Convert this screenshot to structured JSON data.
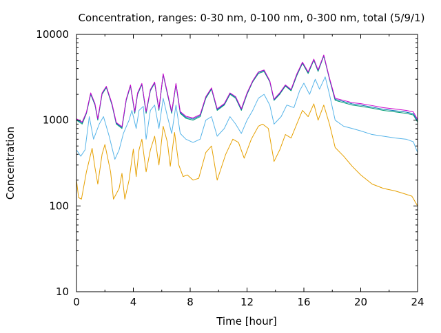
{
  "chart_data": {
    "type": "line",
    "title": "Concentration, ranges: 0-30 nm, 0-100 nm, 0-300 nm, total (5/9/1)",
    "xlabel": "Time [hour]",
    "ylabel": "Concentration",
    "xlim": [
      0,
      24
    ],
    "ylim": [
      10,
      10000
    ],
    "y_scale": "log",
    "grid": false,
    "x_ticks": [
      0,
      4,
      8,
      12,
      16,
      20,
      24
    ],
    "x_tick_labels": [
      "0",
      "4",
      "8",
      "12",
      "16",
      "20",
      "24"
    ],
    "y_ticks": [
      10,
      100,
      1000,
      10000
    ],
    "y_tick_labels": [
      "10",
      "100",
      "1000",
      "10000"
    ],
    "series": [
      {
        "color": "#E6A000",
        "points": [
          [
            0,
            200
          ],
          [
            0.15,
            125
          ],
          [
            0.35,
            120
          ],
          [
            0.7,
            250
          ],
          [
            1.1,
            470
          ],
          [
            1.3,
            280
          ],
          [
            1.5,
            180
          ],
          [
            1.8,
            400
          ],
          [
            2.0,
            520
          ],
          [
            2.4,
            250
          ],
          [
            2.6,
            120
          ],
          [
            3.0,
            160
          ],
          [
            3.2,
            240
          ],
          [
            3.4,
            120
          ],
          [
            3.7,
            200
          ],
          [
            4.0,
            460
          ],
          [
            4.2,
            220
          ],
          [
            4.4,
            450
          ],
          [
            4.6,
            600
          ],
          [
            4.9,
            250
          ],
          [
            5.2,
            450
          ],
          [
            5.5,
            650
          ],
          [
            5.8,
            300
          ],
          [
            6.1,
            850
          ],
          [
            6.4,
            550
          ],
          [
            6.6,
            290
          ],
          [
            6.9,
            720
          ],
          [
            7.2,
            300
          ],
          [
            7.5,
            220
          ],
          [
            7.8,
            230
          ],
          [
            8.2,
            200
          ],
          [
            8.6,
            210
          ],
          [
            9.1,
            420
          ],
          [
            9.5,
            500
          ],
          [
            9.9,
            200
          ],
          [
            10.5,
            400
          ],
          [
            11.0,
            600
          ],
          [
            11.4,
            550
          ],
          [
            11.8,
            360
          ],
          [
            12.3,
            600
          ],
          [
            12.8,
            850
          ],
          [
            13.1,
            900
          ],
          [
            13.5,
            800
          ],
          [
            13.9,
            330
          ],
          [
            14.3,
            450
          ],
          [
            14.7,
            680
          ],
          [
            15.1,
            620
          ],
          [
            15.5,
            900
          ],
          [
            15.9,
            1300
          ],
          [
            16.3,
            1100
          ],
          [
            16.7,
            1550
          ],
          [
            17.0,
            1000
          ],
          [
            17.4,
            1500
          ],
          [
            17.8,
            900
          ],
          [
            18.2,
            480
          ],
          [
            18.8,
            380
          ],
          [
            19.4,
            290
          ],
          [
            20.0,
            230
          ],
          [
            20.8,
            180
          ],
          [
            21.6,
            160
          ],
          [
            22.4,
            150
          ],
          [
            23.0,
            140
          ],
          [
            23.6,
            130
          ],
          [
            24,
            100
          ]
        ]
      },
      {
        "color": "#56B4E9",
        "points": [
          [
            0,
            450
          ],
          [
            0.3,
            380
          ],
          [
            0.6,
            450
          ],
          [
            0.9,
            1100
          ],
          [
            1.2,
            600
          ],
          [
            1.6,
            900
          ],
          [
            1.9,
            1100
          ],
          [
            2.3,
            650
          ],
          [
            2.7,
            350
          ],
          [
            3.0,
            450
          ],
          [
            3.3,
            700
          ],
          [
            3.7,
            1000
          ],
          [
            3.9,
            1300
          ],
          [
            4.2,
            800
          ],
          [
            4.4,
            1300
          ],
          [
            4.7,
            1450
          ],
          [
            4.9,
            600
          ],
          [
            5.2,
            1300
          ],
          [
            5.5,
            1500
          ],
          [
            5.8,
            800
          ],
          [
            6.1,
            1800
          ],
          [
            6.4,
            1100
          ],
          [
            6.7,
            700
          ],
          [
            7.0,
            1500
          ],
          [
            7.3,
            700
          ],
          [
            7.7,
            600
          ],
          [
            8.2,
            550
          ],
          [
            8.7,
            600
          ],
          [
            9.1,
            1000
          ],
          [
            9.5,
            1100
          ],
          [
            9.9,
            650
          ],
          [
            10.4,
            800
          ],
          [
            10.8,
            1100
          ],
          [
            11.2,
            900
          ],
          [
            11.6,
            700
          ],
          [
            12.0,
            1000
          ],
          [
            12.4,
            1300
          ],
          [
            12.8,
            1800
          ],
          [
            13.2,
            2000
          ],
          [
            13.6,
            1500
          ],
          [
            13.9,
            900
          ],
          [
            14.4,
            1100
          ],
          [
            14.8,
            1500
          ],
          [
            15.3,
            1400
          ],
          [
            15.7,
            2200
          ],
          [
            16.0,
            2700
          ],
          [
            16.4,
            2000
          ],
          [
            16.8,
            3000
          ],
          [
            17.1,
            2300
          ],
          [
            17.5,
            3200
          ],
          [
            17.8,
            2000
          ],
          [
            18.2,
            1000
          ],
          [
            18.8,
            850
          ],
          [
            19.4,
            800
          ],
          [
            20.0,
            750
          ],
          [
            20.8,
            680
          ],
          [
            21.6,
            650
          ],
          [
            22.4,
            620
          ],
          [
            23.2,
            600
          ],
          [
            23.7,
            560
          ],
          [
            24,
            420
          ]
        ]
      },
      {
        "color": "#009E73",
        "points": [
          [
            0,
            1000
          ],
          [
            0.4,
            900
          ],
          [
            0.7,
            1200
          ],
          [
            1.0,
            2000
          ],
          [
            1.3,
            1500
          ],
          [
            1.5,
            1000
          ],
          [
            1.8,
            2000
          ],
          [
            2.1,
            2400
          ],
          [
            2.5,
            1500
          ],
          [
            2.8,
            900
          ],
          [
            3.2,
            800
          ],
          [
            3.5,
            1700
          ],
          [
            3.8,
            2500
          ],
          [
            4.1,
            1200
          ],
          [
            4.3,
            2000
          ],
          [
            4.6,
            2600
          ],
          [
            4.9,
            1200
          ],
          [
            5.2,
            2200
          ],
          [
            5.5,
            2700
          ],
          [
            5.8,
            1300
          ],
          [
            6.1,
            3400
          ],
          [
            6.4,
            2000
          ],
          [
            6.7,
            1200
          ],
          [
            7.0,
            2600
          ],
          [
            7.3,
            1200
          ],
          [
            7.7,
            1050
          ],
          [
            8.2,
            1000
          ],
          [
            8.7,
            1100
          ],
          [
            9.1,
            1800
          ],
          [
            9.5,
            2300
          ],
          [
            9.9,
            1300
          ],
          [
            10.4,
            1500
          ],
          [
            10.8,
            2000
          ],
          [
            11.2,
            1800
          ],
          [
            11.6,
            1300
          ],
          [
            12.0,
            2000
          ],
          [
            12.4,
            2800
          ],
          [
            12.8,
            3500
          ],
          [
            13.2,
            3700
          ],
          [
            13.6,
            2800
          ],
          [
            13.9,
            1700
          ],
          [
            14.3,
            2000
          ],
          [
            14.7,
            2500
          ],
          [
            15.1,
            2200
          ],
          [
            15.5,
            3300
          ],
          [
            15.9,
            4600
          ],
          [
            16.3,
            3500
          ],
          [
            16.7,
            5000
          ],
          [
            17.0,
            3700
          ],
          [
            17.4,
            5600
          ],
          [
            17.8,
            3000
          ],
          [
            18.2,
            1700
          ],
          [
            18.8,
            1600
          ],
          [
            19.4,
            1500
          ],
          [
            20.0,
            1450
          ],
          [
            20.8,
            1380
          ],
          [
            21.6,
            1300
          ],
          [
            22.4,
            1250
          ],
          [
            23.2,
            1200
          ],
          [
            23.7,
            1150
          ],
          [
            24,
            950
          ]
        ]
      },
      {
        "color": "#0072B2",
        "points": [
          [
            0,
            1020
          ],
          [
            0.4,
            930
          ],
          [
            0.7,
            1220
          ],
          [
            1.0,
            2050
          ],
          [
            1.3,
            1530
          ],
          [
            1.5,
            1020
          ],
          [
            1.8,
            2050
          ],
          [
            2.1,
            2450
          ],
          [
            2.5,
            1530
          ],
          [
            2.8,
            920
          ],
          [
            3.2,
            820
          ],
          [
            3.5,
            1730
          ],
          [
            3.8,
            2550
          ],
          [
            4.1,
            1230
          ],
          [
            4.3,
            2050
          ],
          [
            4.6,
            2650
          ],
          [
            4.9,
            1230
          ],
          [
            5.2,
            2250
          ],
          [
            5.5,
            2750
          ],
          [
            5.8,
            1330
          ],
          [
            6.1,
            3450
          ],
          [
            6.4,
            2050
          ],
          [
            6.7,
            1230
          ],
          [
            7.0,
            2650
          ],
          [
            7.3,
            1230
          ],
          [
            7.7,
            1080
          ],
          [
            8.2,
            1030
          ],
          [
            8.7,
            1130
          ],
          [
            9.1,
            1850
          ],
          [
            9.5,
            2350
          ],
          [
            9.9,
            1330
          ],
          [
            10.4,
            1530
          ],
          [
            10.8,
            2050
          ],
          [
            11.2,
            1850
          ],
          [
            11.6,
            1330
          ],
          [
            12.0,
            2050
          ],
          [
            12.4,
            2850
          ],
          [
            12.8,
            3600
          ],
          [
            13.2,
            3800
          ],
          [
            13.6,
            2850
          ],
          [
            13.9,
            1730
          ],
          [
            14.3,
            2050
          ],
          [
            14.7,
            2550
          ],
          [
            15.1,
            2250
          ],
          [
            15.5,
            3400
          ],
          [
            15.9,
            4700
          ],
          [
            16.3,
            3600
          ],
          [
            16.7,
            5100
          ],
          [
            17.0,
            3800
          ],
          [
            17.4,
            5700
          ],
          [
            17.8,
            3050
          ],
          [
            18.2,
            1750
          ],
          [
            18.8,
            1650
          ],
          [
            19.4,
            1550
          ],
          [
            20.0,
            1500
          ],
          [
            20.8,
            1420
          ],
          [
            21.6,
            1340
          ],
          [
            22.4,
            1290
          ],
          [
            23.2,
            1240
          ],
          [
            23.7,
            1190
          ],
          [
            24,
            980
          ]
        ]
      },
      {
        "color": "#CC00CC",
        "points": [
          [
            0,
            1040
          ],
          [
            0.4,
            950
          ],
          [
            0.7,
            1240
          ],
          [
            1.0,
            2080
          ],
          [
            1.3,
            1560
          ],
          [
            1.5,
            1040
          ],
          [
            1.8,
            2080
          ],
          [
            2.1,
            2480
          ],
          [
            2.5,
            1560
          ],
          [
            2.8,
            940
          ],
          [
            3.2,
            840
          ],
          [
            3.5,
            1760
          ],
          [
            3.8,
            2580
          ],
          [
            4.1,
            1260
          ],
          [
            4.3,
            2080
          ],
          [
            4.6,
            2680
          ],
          [
            4.9,
            1260
          ],
          [
            5.2,
            2280
          ],
          [
            5.5,
            2780
          ],
          [
            5.8,
            1360
          ],
          [
            6.1,
            3480
          ],
          [
            6.4,
            2080
          ],
          [
            6.7,
            1260
          ],
          [
            7.0,
            2680
          ],
          [
            7.3,
            1260
          ],
          [
            7.7,
            1110
          ],
          [
            8.2,
            1060
          ],
          [
            8.7,
            1160
          ],
          [
            9.1,
            1880
          ],
          [
            9.5,
            2380
          ],
          [
            9.9,
            1360
          ],
          [
            10.4,
            1560
          ],
          [
            10.8,
            2080
          ],
          [
            11.2,
            1880
          ],
          [
            11.6,
            1360
          ],
          [
            12.0,
            2080
          ],
          [
            12.4,
            2880
          ],
          [
            12.8,
            3650
          ],
          [
            13.2,
            3850
          ],
          [
            13.6,
            2880
          ],
          [
            13.9,
            1760
          ],
          [
            14.3,
            2080
          ],
          [
            14.7,
            2580
          ],
          [
            15.1,
            2280
          ],
          [
            15.5,
            3450
          ],
          [
            15.9,
            4750
          ],
          [
            16.3,
            3650
          ],
          [
            16.7,
            5150
          ],
          [
            17.0,
            3850
          ],
          [
            17.4,
            5750
          ],
          [
            17.8,
            3100
          ],
          [
            18.2,
            1800
          ],
          [
            18.8,
            1700
          ],
          [
            19.4,
            1600
          ],
          [
            20.0,
            1560
          ],
          [
            20.8,
            1480
          ],
          [
            21.6,
            1400
          ],
          [
            22.4,
            1350
          ],
          [
            23.2,
            1300
          ],
          [
            23.7,
            1250
          ],
          [
            24,
            1020
          ]
        ]
      }
    ]
  }
}
